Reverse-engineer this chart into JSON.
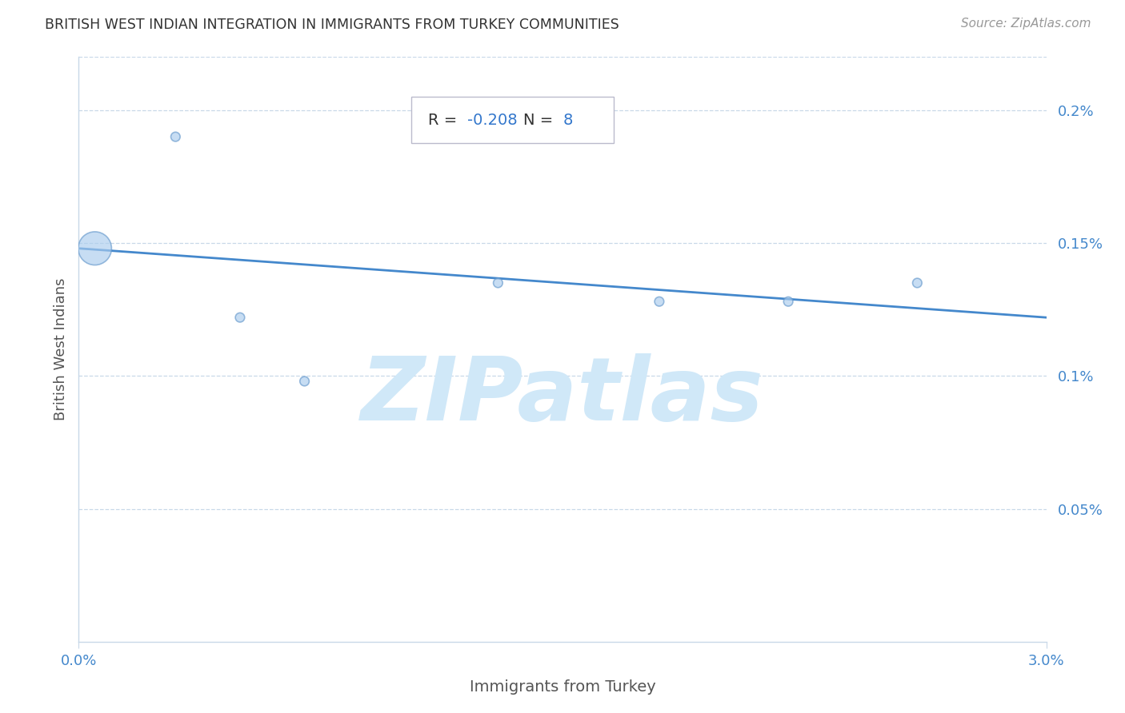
{
  "title": "BRITISH WEST INDIAN INTEGRATION IN IMMIGRANTS FROM TURKEY COMMUNITIES",
  "source": "Source: ZipAtlas.com",
  "xlabel": "Immigrants from Turkey",
  "ylabel": "British West Indians",
  "R": -0.208,
  "N": 8,
  "xlim": [
    0.0,
    0.03
  ],
  "ylim": [
    0.0,
    0.0022
  ],
  "xtick_labels": [
    "0.0%",
    "3.0%"
  ],
  "xtick_positions": [
    0.0,
    0.03
  ],
  "ytick_labels": [
    "0.05%",
    "0.1%",
    "0.15%",
    "0.2%"
  ],
  "ytick_positions": [
    0.0005,
    0.001,
    0.0015,
    0.002
  ],
  "scatter_x": [
    0.0005,
    0.003,
    0.005,
    0.007,
    0.013,
    0.018,
    0.022,
    0.026
  ],
  "scatter_y": [
    0.00148,
    0.0019,
    0.00122,
    0.00098,
    0.00135,
    0.00128,
    0.00128,
    0.00135
  ],
  "scatter_sizes": [
    900,
    70,
    70,
    70,
    70,
    70,
    70,
    70
  ],
  "scatter_color": "#aaccee",
  "scatter_edge_color": "#6699cc",
  "regression_x0": 0.0,
  "regression_y0": 0.00148,
  "regression_x1": 0.03,
  "regression_y1": 0.00122,
  "regression_color": "#4488cc",
  "grid_color": "#c8d8e8",
  "title_color": "#333333",
  "source_color": "#999999",
  "axis_color": "#4488cc",
  "label_color": "#555555",
  "annotation_color": "#333333",
  "annotation_value_color": "#3377cc",
  "background_color": "#ffffff",
  "watermark_text": "ZIPatlas",
  "watermark_color": "#d0e8f8",
  "watermark_fontsize": 80
}
